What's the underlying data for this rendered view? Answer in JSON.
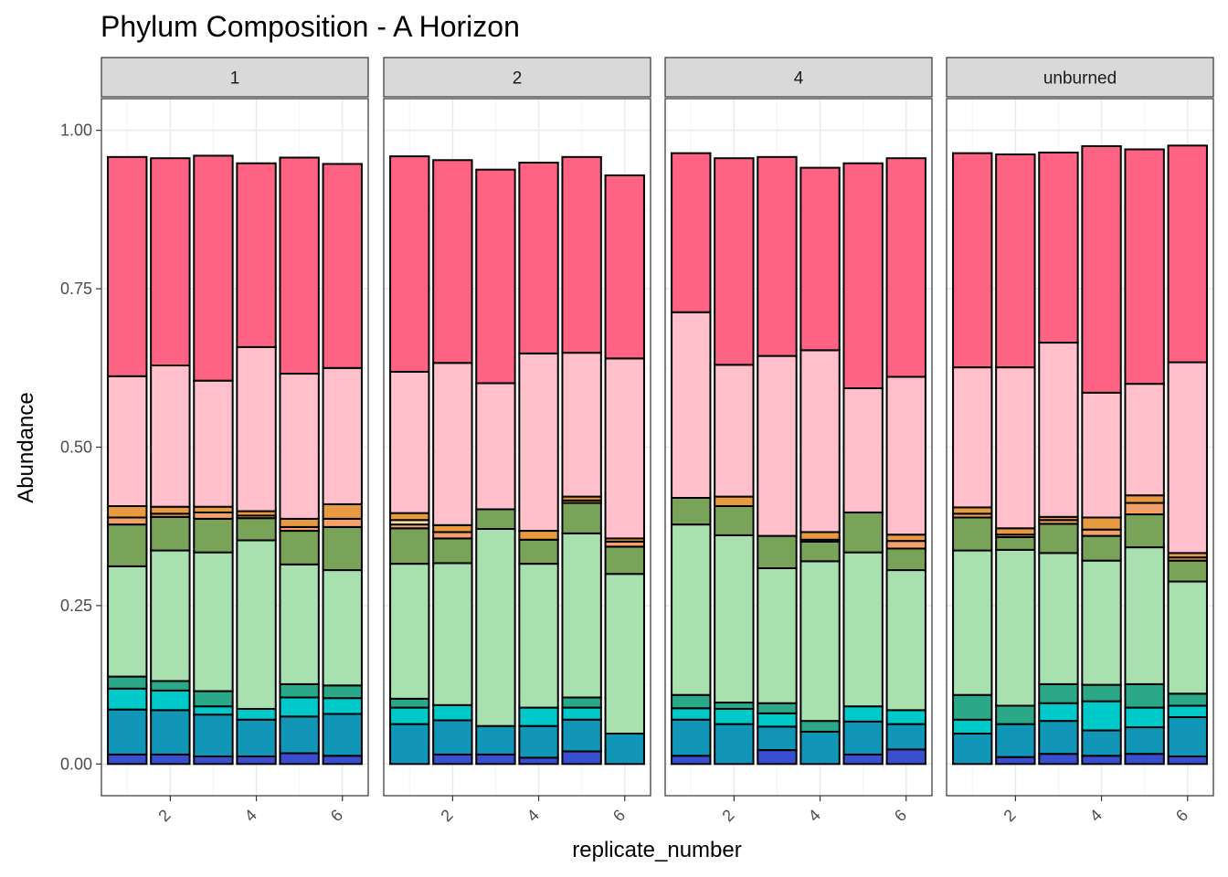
{
  "chart_data": {
    "type": "bar",
    "stacked": true,
    "title": "Phylum Composition - A Horizon",
    "xlabel": "replicate_number",
    "ylabel": "Abundance",
    "ylim": [
      -0.05,
      1.05
    ],
    "yticks": [
      "0.00",
      "0.25",
      "0.50",
      "0.75",
      "1.00"
    ],
    "ytick_values": [
      0,
      0.25,
      0.5,
      0.75,
      1.0
    ],
    "xticks": [
      "2",
      "4",
      "6"
    ],
    "xtick_values": [
      2,
      4,
      6
    ],
    "categories": [
      1,
      2,
      3,
      4,
      5,
      6
    ],
    "grid": true,
    "legend": "none",
    "theme_colors": {
      "strip_fill": "#d9d9d9",
      "panel_border": "#333333",
      "grid_major": "#ebebeb",
      "grid_minor": "#f4f4f4",
      "bar_outline": "#000000"
    },
    "layer_colors": [
      "#3a4fd0",
      "#1296b8",
      "#00c9c9",
      "#2aa888",
      "#a8e0b0",
      "#7aa35a",
      "#f4a06a",
      "#e89a40",
      "#ffd9a0",
      "#ffc0cc",
      "#ff6383"
    ],
    "facets": [
      {
        "label": "1",
        "bars": [
          {
            "x": 1,
            "layers": [
              [
                0,
                0.015
              ],
              [
                1,
                0.071
              ],
              [
                2,
                0.033
              ],
              [
                3,
                0.019
              ],
              [
                4,
                0.174
              ],
              [
                5,
                0.066
              ],
              [
                6,
                0.011
              ],
              [
                7,
                0.018
              ],
              [
                9,
                0.205
              ],
              [
                10,
                0.346
              ]
            ]
          },
          {
            "x": 2,
            "layers": [
              [
                0,
                0.015
              ],
              [
                1,
                0.07
              ],
              [
                2,
                0.031
              ],
              [
                3,
                0.015
              ],
              [
                4,
                0.206
              ],
              [
                5,
                0.053
              ],
              [
                6,
                0.005
              ],
              [
                7,
                0.011
              ],
              [
                9,
                0.223
              ],
              [
                10,
                0.327
              ]
            ]
          },
          {
            "x": 3,
            "layers": [
              [
                0,
                0.012
              ],
              [
                1,
                0.066
              ],
              [
                2,
                0.013
              ],
              [
                3,
                0.024
              ],
              [
                4,
                0.219
              ],
              [
                5,
                0.053
              ],
              [
                6,
                0.01
              ],
              [
                7,
                0.009
              ],
              [
                9,
                0.199
              ],
              [
                10,
                0.355
              ]
            ]
          },
          {
            "x": 4,
            "layers": [
              [
                0,
                0.012
              ],
              [
                1,
                0.058
              ],
              [
                2,
                0.017
              ],
              [
                4,
                0.266
              ],
              [
                5,
                0.035
              ],
              [
                6,
                0.004
              ],
              [
                7,
                0.007
              ],
              [
                9,
                0.259
              ],
              [
                10,
                0.29
              ]
            ]
          },
          {
            "x": 5,
            "layers": [
              [
                0,
                0.017
              ],
              [
                1,
                0.058
              ],
              [
                2,
                0.03
              ],
              [
                3,
                0.021
              ],
              [
                4,
                0.189
              ],
              [
                5,
                0.053
              ],
              [
                6,
                0.006
              ],
              [
                7,
                0.013
              ],
              [
                9,
                0.229
              ],
              [
                10,
                0.341
              ]
            ]
          },
          {
            "x": 6,
            "layers": [
              [
                0,
                0.013
              ],
              [
                1,
                0.066
              ],
              [
                2,
                0.025
              ],
              [
                3,
                0.02
              ],
              [
                4,
                0.182
              ],
              [
                5,
                0.068
              ],
              [
                6,
                0.013
              ],
              [
                7,
                0.023
              ],
              [
                9,
                0.215
              ],
              [
                10,
                0.322
              ]
            ]
          }
        ]
      },
      {
        "label": "2",
        "bars": [
          {
            "x": 1,
            "layers": [
              [
                1,
                0.063
              ],
              [
                2,
                0.026
              ],
              [
                3,
                0.014
              ],
              [
                4,
                0.213
              ],
              [
                5,
                0.056
              ],
              [
                6,
                0.006
              ],
              [
                8,
                0.007
              ],
              [
                7,
                0.011
              ],
              [
                9,
                0.223
              ],
              [
                10,
                0.34
              ]
            ]
          },
          {
            "x": 2,
            "layers": [
              [
                0,
                0.015
              ],
              [
                1,
                0.054
              ],
              [
                2,
                0.024
              ],
              [
                4,
                0.224
              ],
              [
                5,
                0.039
              ],
              [
                6,
                0.01
              ],
              [
                7,
                0.011
              ],
              [
                9,
                0.256
              ],
              [
                10,
                0.32
              ]
            ]
          },
          {
            "x": 3,
            "layers": [
              [
                0,
                0.015
              ],
              [
                1,
                0.045
              ],
              [
                4,
                0.311
              ],
              [
                5,
                0.031
              ],
              [
                9,
                0.199
              ],
              [
                10,
                0.337
              ]
            ]
          },
          {
            "x": 4,
            "layers": [
              [
                0,
                0.01
              ],
              [
                1,
                0.05
              ],
              [
                2,
                0.029
              ],
              [
                4,
                0.227
              ],
              [
                5,
                0.038
              ],
              [
                7,
                0.014
              ],
              [
                9,
                0.28
              ],
              [
                10,
                0.301
              ]
            ]
          },
          {
            "x": 5,
            "layers": [
              [
                0,
                0.02
              ],
              [
                1,
                0.05
              ],
              [
                2,
                0.019
              ],
              [
                3,
                0.016
              ],
              [
                4,
                0.259
              ],
              [
                5,
                0.048
              ],
              [
                6,
                0.004
              ],
              [
                7,
                0.006
              ],
              [
                9,
                0.227
              ],
              [
                10,
                0.309
              ]
            ]
          },
          {
            "x": 6,
            "layers": [
              [
                1,
                0.048
              ],
              [
                4,
                0.252
              ],
              [
                5,
                0.043
              ],
              [
                6,
                0.008
              ],
              [
                7,
                0.005
              ],
              [
                9,
                0.284
              ],
              [
                10,
                0.289
              ]
            ]
          }
        ]
      },
      {
        "label": "4",
        "bars": [
          {
            "x": 1,
            "layers": [
              [
                0,
                0.013
              ],
              [
                1,
                0.057
              ],
              [
                2,
                0.018
              ],
              [
                3,
                0.021
              ],
              [
                4,
                0.269
              ],
              [
                5,
                0.042
              ],
              [
                9,
                0.293
              ],
              [
                10,
                0.251
              ]
            ]
          },
          {
            "x": 2,
            "layers": [
              [
                1,
                0.063
              ],
              [
                2,
                0.024
              ],
              [
                3,
                0.01
              ],
              [
                4,
                0.264
              ],
              [
                5,
                0.046
              ],
              [
                7,
                0.015
              ],
              [
                9,
                0.208
              ],
              [
                10,
                0.326
              ]
            ]
          },
          {
            "x": 3,
            "layers": [
              [
                0,
                0.022
              ],
              [
                1,
                0.037
              ],
              [
                2,
                0.021
              ],
              [
                3,
                0.016
              ],
              [
                4,
                0.213
              ],
              [
                5,
                0.051
              ],
              [
                9,
                0.284
              ],
              [
                10,
                0.314
              ]
            ]
          },
          {
            "x": 4,
            "layers": [
              [
                1,
                0.051
              ],
              [
                3,
                0.017
              ],
              [
                4,
                0.252
              ],
              [
                5,
                0.031
              ],
              [
                6,
                0.003
              ],
              [
                7,
                0.012
              ],
              [
                9,
                0.287
              ],
              [
                10,
                0.288
              ]
            ]
          },
          {
            "x": 5,
            "layers": [
              [
                0,
                0.015
              ],
              [
                1,
                0.052
              ],
              [
                2,
                0.024
              ],
              [
                4,
                0.243
              ],
              [
                5,
                0.063
              ],
              [
                9,
                0.196
              ],
              [
                10,
                0.355
              ]
            ]
          },
          {
            "x": 6,
            "layers": [
              [
                0,
                0.023
              ],
              [
                1,
                0.04
              ],
              [
                2,
                0.022
              ],
              [
                4,
                0.221
              ],
              [
                5,
                0.034
              ],
              [
                6,
                0.012
              ],
              [
                7,
                0.01
              ],
              [
                9,
                0.249
              ],
              [
                10,
                0.345
              ]
            ]
          }
        ]
      },
      {
        "label": "unburned",
        "bars": [
          {
            "x": 1,
            "layers": [
              [
                1,
                0.048
              ],
              [
                2,
                0.022
              ],
              [
                3,
                0.039
              ],
              [
                4,
                0.228
              ],
              [
                5,
                0.052
              ],
              [
                6,
                0.006
              ],
              [
                7,
                0.01
              ],
              [
                9,
                0.221
              ],
              [
                10,
                0.338
              ]
            ]
          },
          {
            "x": 2,
            "layers": [
              [
                0,
                0.011
              ],
              [
                1,
                0.052
              ],
              [
                3,
                0.029
              ],
              [
                4,
                0.246
              ],
              [
                5,
                0.02
              ],
              [
                6,
                0.004
              ],
              [
                7,
                0.01
              ],
              [
                9,
                0.254
              ],
              [
                10,
                0.336
              ]
            ]
          },
          {
            "x": 3,
            "layers": [
              [
                0,
                0.016
              ],
              [
                1,
                0.052
              ],
              [
                2,
                0.028
              ],
              [
                3,
                0.03
              ],
              [
                4,
                0.207
              ],
              [
                5,
                0.046
              ],
              [
                6,
                0.006
              ],
              [
                7,
                0.005
              ],
              [
                9,
                0.275
              ],
              [
                10,
                0.3
              ]
            ]
          },
          {
            "x": 4,
            "layers": [
              [
                0,
                0.013
              ],
              [
                1,
                0.04
              ],
              [
                2,
                0.046
              ],
              [
                3,
                0.026
              ],
              [
                4,
                0.196
              ],
              [
                5,
                0.039
              ],
              [
                6,
                0.01
              ],
              [
                7,
                0.019
              ],
              [
                9,
                0.197
              ],
              [
                10,
                0.389
              ]
            ]
          },
          {
            "x": 5,
            "layers": [
              [
                0,
                0.016
              ],
              [
                1,
                0.042
              ],
              [
                2,
                0.031
              ],
              [
                3,
                0.037
              ],
              [
                4,
                0.216
              ],
              [
                5,
                0.052
              ],
              [
                6,
                0.018
              ],
              [
                7,
                0.012
              ],
              [
                9,
                0.176
              ],
              [
                10,
                0.37
              ]
            ]
          },
          {
            "x": 6,
            "layers": [
              [
                0,
                0.012
              ],
              [
                1,
                0.062
              ],
              [
                2,
                0.018
              ],
              [
                3,
                0.019
              ],
              [
                4,
                0.177
              ],
              [
                5,
                0.033
              ],
              [
                6,
                0.005
              ],
              [
                7,
                0.007
              ],
              [
                9,
                0.301
              ],
              [
                10,
                0.342
              ]
            ]
          }
        ]
      }
    ]
  }
}
